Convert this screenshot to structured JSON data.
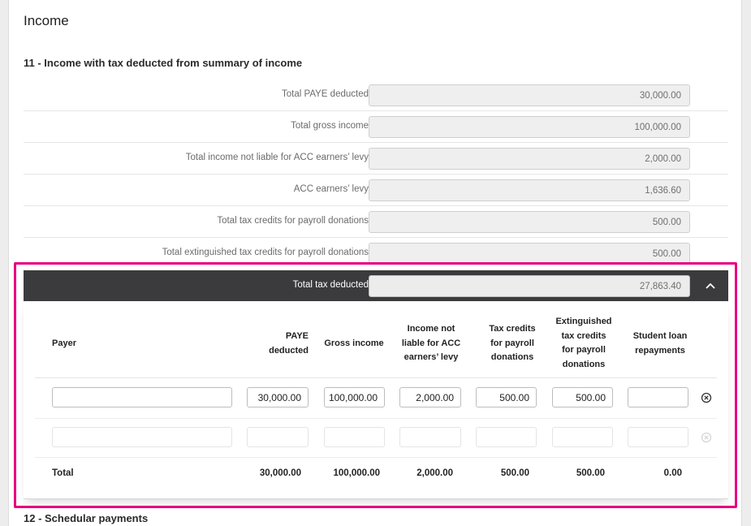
{
  "page": {
    "title": "Income"
  },
  "section11": {
    "title": "11 - Income with tax deducted from summary of income",
    "rows": [
      {
        "label": "Total PAYE deducted",
        "value": "30,000.00"
      },
      {
        "label": "Total gross income",
        "value": "100,000.00"
      },
      {
        "label": "Total income not liable for ACC earners’ levy",
        "value": "2,000.00"
      },
      {
        "label": "ACC earners’ levy",
        "value": "1,636.60"
      },
      {
        "label": "Total tax credits for payroll donations",
        "value": "500.00"
      },
      {
        "label": "Total extinguished tax credits for payroll donations",
        "value": "500.00"
      }
    ],
    "total": {
      "label": "Total tax deducted",
      "value": "27,863.40"
    },
    "icons": {
      "collapse": "chevron-up-icon",
      "remove": "remove-circle-icon"
    },
    "table": {
      "headers": {
        "payer": "Payer",
        "paye": [
          "PAYE",
          "deducted"
        ],
        "gross": "Gross income",
        "acc": [
          "Income not",
          "liable for ACC",
          "earners’ levy"
        ],
        "credits": [
          "Tax credits",
          "for payroll",
          "donations"
        ],
        "ext": [
          "Extinguished",
          "tax credits",
          "for payroll",
          "donations"
        ],
        "loan": [
          "Student loan",
          "repayments"
        ]
      },
      "rows": [
        {
          "payer": "",
          "paye": "30,000.00",
          "gross": "100,000.00",
          "acc": "2,000.00",
          "credits": "500.00",
          "ext": "500.00",
          "loan": ""
        },
        {
          "payer": "",
          "paye": "",
          "gross": "",
          "acc": "",
          "credits": "",
          "ext": "",
          "loan": ""
        }
      ],
      "totals": {
        "label": "Total",
        "paye": "30,000.00",
        "gross": "100,000.00",
        "acc": "2,000.00",
        "credits": "500.00",
        "ext": "500.00",
        "loan": "0.00"
      }
    }
  },
  "section12": {
    "title": "12 - Schedular payments"
  },
  "colors": {
    "highlight": "#e6007e",
    "total_bar": "#3b3b3d"
  }
}
